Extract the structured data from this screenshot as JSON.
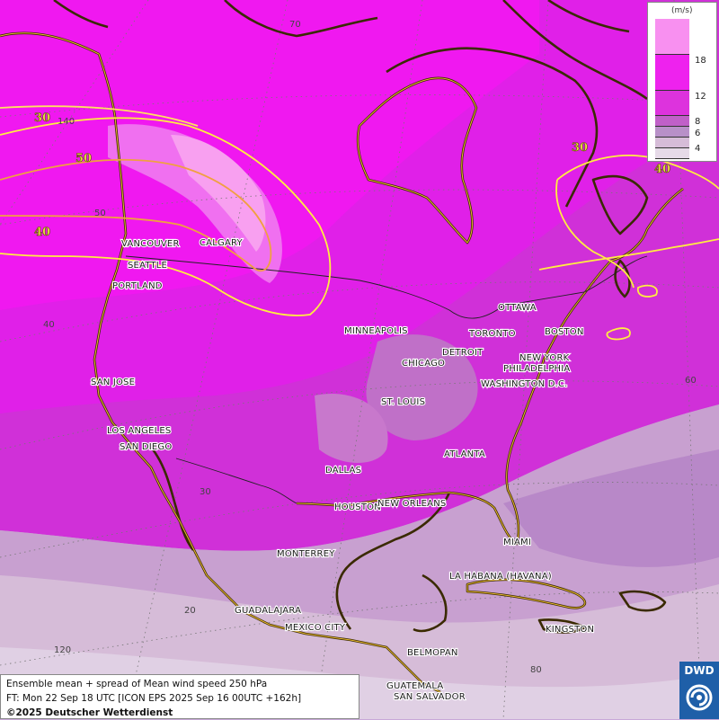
{
  "map": {
    "parameter": "Ensemble mean + spread of Mean wind speed 250 hPa",
    "cities": [
      "VANCOUVER",
      "CALGARY",
      "SEATTLE",
      "PORTLAND",
      "MINNEAPOLIS",
      "TORONTO",
      "OTTAWA",
      "DETROIT",
      "BOSTON",
      "CHICAGO",
      "NEW YORK",
      "PHILADELPHIA",
      "WASHINGTON D.C.",
      "SAN JOSE",
      "ST. LOUIS",
      "LOS ANGELES",
      "SAN DIEGO",
      "ATLANTA",
      "DALLAS",
      "HOUSTON",
      "NEW ORLEANS",
      "MIAMI",
      "MONTERREY",
      "LA HABANA (HAVANA)",
      "GUADALAJARA",
      "MEXICO CITY",
      "KINGSTON",
      "BELMOPAN",
      "GUATEMALA",
      "SAN SALVADOR"
    ],
    "grid_labels": [
      "70",
      "140",
      "50",
      "40",
      "30",
      "20",
      "120",
      "60",
      "80"
    ],
    "contour_labels": [
      "30",
      "50",
      "40",
      "30",
      "40"
    ]
  },
  "legend": {
    "unit": "(m/s)",
    "levels": [
      "18",
      "12",
      "8",
      "6",
      "4"
    ],
    "colors": [
      "#f890f0",
      "#ee22ee",
      "#dd33dd",
      "#c060c8",
      "#b890c8",
      "#d6bcd8",
      "#e6dae8"
    ]
  },
  "footer": {
    "line1": "Ensemble mean + spread of Mean wind speed 250 hPa",
    "line2": "FT: Mon 22 Sep 18 UTC [ICON EPS 2025 Sep 16 00UTC +162h]",
    "line3": "©2025 Deutscher Wetterdienst"
  },
  "logo": {
    "text": "DWD"
  }
}
